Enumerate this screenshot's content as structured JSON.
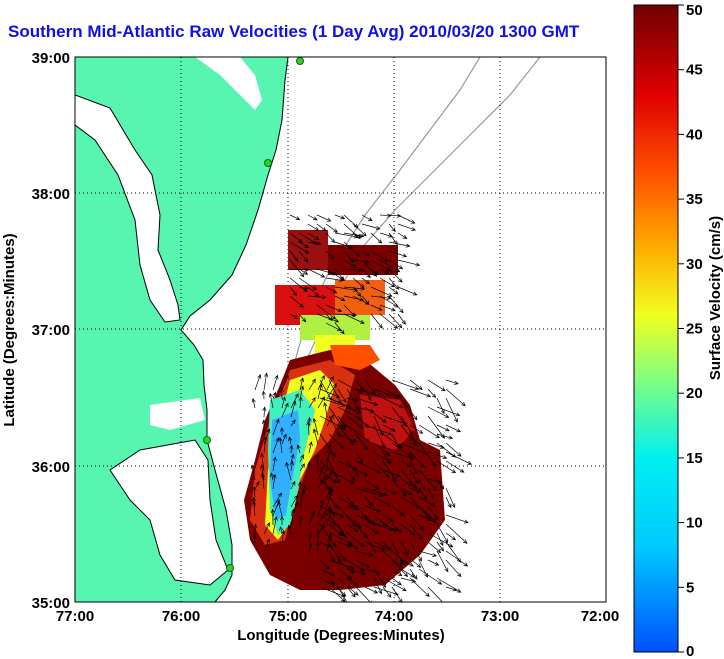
{
  "title": "Southern Mid-Atlantic Raw Velocities (1 Day Avg) 2010/03/20 1300 GMT",
  "x_axis": {
    "label": "Longitude (Degrees:Minutes)",
    "ticks": [
      "77:00",
      "76:00",
      "75:00",
      "74:00",
      "73:00",
      "72:00"
    ]
  },
  "y_axis": {
    "label": "Latitude (Degrees:Minutes)",
    "ticks": [
      "39:00",
      "38:00",
      "37:00",
      "36:00",
      "35:00"
    ]
  },
  "colorbar": {
    "label": "Surface Velocity (cm/s)",
    "ticks": [
      "50",
      "45",
      "40",
      "35",
      "30",
      "25",
      "20",
      "15",
      "10",
      "5",
      "0"
    ],
    "min": 0,
    "max": 50
  },
  "colors": {
    "land": "#57f5b0",
    "title": "#1010e6",
    "station": "#28d428"
  },
  "map_extent": {
    "lon_min": -77,
    "lon_max": -72,
    "lat_min": 35,
    "lat_max": 39
  }
}
